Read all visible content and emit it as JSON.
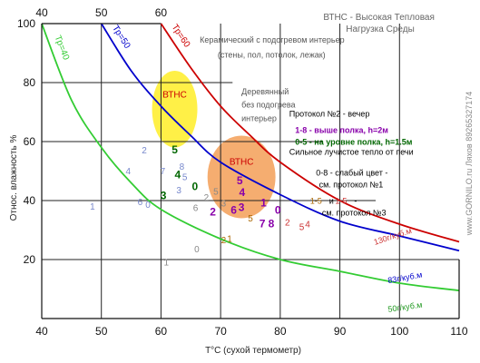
{
  "chart_data": {
    "type": "line",
    "title": "ВТНС - Высокая  Тепловая\nНагрузка Среды",
    "xlabel": "T°C (сухой термометр)",
    "ylabel": "Относ. влажность %",
    "xlim": [
      40,
      110
    ],
    "ylim": [
      0,
      100
    ],
    "x_ticks": [
      40,
      50,
      60,
      70,
      80,
      90,
      100,
      110
    ],
    "y_ticks": [
      20,
      40,
      60,
      80,
      100
    ],
    "top_ticks": [
      {
        "label": "40",
        "x": 40
      },
      {
        "label": "50",
        "x": 50
      },
      {
        "label": "60",
        "x": 60
      }
    ],
    "grid": true,
    "vertical_lines": [
      50,
      60,
      70,
      80,
      90,
      100
    ],
    "horizontal_lines": [
      {
        "y": 80,
        "to": 72
      },
      {
        "y": 60,
        "to": 87
      },
      {
        "y": 40,
        "to": 96
      },
      {
        "y": 20,
        "to": 110
      }
    ],
    "series": [
      {
        "name": "Тр=40",
        "color": "#33cc33",
        "points": [
          [
            40,
            100
          ],
          [
            45,
            74
          ],
          [
            50,
            58
          ],
          [
            55,
            46
          ],
          [
            60,
            37
          ],
          [
            70,
            27
          ],
          [
            80,
            20
          ],
          [
            90,
            16
          ],
          [
            100,
            12
          ],
          [
            110,
            9.5
          ]
        ]
      },
      {
        "name": "Тр=50",
        "color": "#0000cc",
        "points": [
          [
            50,
            100
          ],
          [
            55,
            84
          ],
          [
            60,
            72
          ],
          [
            65,
            62
          ],
          [
            70,
            53
          ],
          [
            80,
            42
          ],
          [
            90,
            33
          ],
          [
            100,
            28
          ],
          [
            110,
            23
          ]
        ]
      },
      {
        "name": "Тр=60",
        "color": "#cc0000",
        "points": [
          [
            60,
            100
          ],
          [
            65,
            85
          ],
          [
            70,
            72
          ],
          [
            75,
            62
          ],
          [
            80,
            53
          ],
          [
            90,
            40
          ],
          [
            100,
            32
          ],
          [
            110,
            26
          ]
        ]
      }
    ],
    "curve_labels": [
      {
        "text": "130г/куб.м",
        "color": "#cc3333",
        "x": 99,
        "y": 27,
        "rotate": -18
      },
      {
        "text": "83г/куб.м",
        "color": "#0000cc",
        "x": 101,
        "y": 13,
        "rotate": -10
      },
      {
        "text": "50г/куб.м",
        "color": "#229922",
        "x": 101,
        "y": 3,
        "rotate": -8
      }
    ],
    "zones": [
      {
        "label": "ВТНС",
        "fill": "#ffee33",
        "label_color": "#cc0000",
        "cx": 62.3,
        "cy": 71,
        "rx": 3.8,
        "ry": 13
      },
      {
        "label": "ВТНС",
        "fill": "#f4a460",
        "label_color": "#cc0000",
        "cx": 73.5,
        "cy": 48,
        "rx": 5.7,
        "ry": 14
      }
    ],
    "annotations": [
      {
        "text": "Керамический с подогревом интерьер",
        "x": 66.5,
        "y": 93.5,
        "color": "#555555"
      },
      {
        "text": "(стены, пол, потолок, лежак)",
        "x": 69.5,
        "y": 88.5,
        "color": "#555555"
      },
      {
        "text": "Деревянный",
        "x": 73.5,
        "y": 76,
        "color": "#555555"
      },
      {
        "text": "без подогрева",
        "x": 73.5,
        "y": 71.5,
        "color": "#555555"
      },
      {
        "text": "интерьер",
        "x": 73.5,
        "y": 67,
        "color": "#555555"
      },
      {
        "text": "Протокол №2 - вечер",
        "x": 81.5,
        "y": 68.5,
        "color": "#000000"
      },
      {
        "text": "1-8 - выше полка, h=2м",
        "x": 82.5,
        "y": 63,
        "color": "#8800aa",
        "bold": true
      },
      {
        "text": "0-5 - на уровне полка, h=1.5м",
        "x": 82.5,
        "y": 59,
        "color": "#006600",
        "bold": true
      },
      {
        "text": "Сильное лучистое тепло от печи",
        "x": 81.5,
        "y": 55.5,
        "color": "#000000"
      },
      {
        "text": "0-8 - слабый цвет -",
        "x": 86,
        "y": 48.5,
        "color": "#000000"
      },
      {
        "text": "см. протокол №1",
        "x": 86.5,
        "y": 44.5,
        "color": "#000000"
      },
      {
        "text": "1-5",
        "x": 85,
        "y": 39,
        "color": "#aa6600"
      },
      {
        "text": "и",
        "x": 88.2,
        "y": 39,
        "color": "#000000"
      },
      {
        "text": "1-5",
        "x": 89.2,
        "y": 39,
        "color": "#cc3333"
      },
      {
        "text": "-",
        "x": 92.4,
        "y": 39,
        "color": "#000000"
      },
      {
        "text": "см. протокол №3",
        "x": 87,
        "y": 35,
        "color": "#000000"
      }
    ],
    "markers": [
      {
        "t": "1",
        "x": 48.5,
        "y": 37,
        "c": "#7788cc"
      },
      {
        "t": "4",
        "x": 54.5,
        "y": 49,
        "c": "#7788cc"
      },
      {
        "t": "2",
        "x": 57.2,
        "y": 56,
        "c": "#7788cc"
      },
      {
        "t": "6",
        "x": 56.5,
        "y": 38.5,
        "c": "#7788cc"
      },
      {
        "t": "0",
        "x": 57.8,
        "y": 37.5,
        "c": "#7788cc"
      },
      {
        "t": "7",
        "x": 60.3,
        "y": 49,
        "c": "#7788cc"
      },
      {
        "t": "8",
        "x": 63.5,
        "y": 50.5,
        "c": "#7788cc"
      },
      {
        "t": "5",
        "x": 64,
        "y": 47,
        "c": "#7788cc"
      },
      {
        "t": "3",
        "x": 63,
        "y": 42.5,
        "c": "#7788cc"
      },
      {
        "t": "5",
        "x": 62.3,
        "y": 56,
        "c": "#006600",
        "bold": true
      },
      {
        "t": "4",
        "x": 62.8,
        "y": 47.5,
        "c": "#006600",
        "bold": true
      },
      {
        "t": "3",
        "x": 60.4,
        "y": 40.5,
        "c": "#006600",
        "bold": true
      },
      {
        "t": "0",
        "x": 65.7,
        "y": 43.5,
        "c": "#006600",
        "bold": true
      },
      {
        "t": "5",
        "x": 69.2,
        "y": 42,
        "c": "#888888"
      },
      {
        "t": "2",
        "x": 67.6,
        "y": 40,
        "c": "#888888"
      },
      {
        "t": "6",
        "x": 65.8,
        "y": 36.5,
        "c": "#888888"
      },
      {
        "t": "3",
        "x": 70.5,
        "y": 38,
        "c": "#888888"
      },
      {
        "t": "0",
        "x": 66,
        "y": 22.5,
        "c": "#888888"
      },
      {
        "t": "1",
        "x": 60.9,
        "y": 18,
        "c": "#888888"
      },
      {
        "t": "5",
        "x": 73.2,
        "y": 45.5,
        "c": "#8800aa",
        "bold": true
      },
      {
        "t": "4",
        "x": 73.6,
        "y": 41.5,
        "c": "#8800aa",
        "bold": true
      },
      {
        "t": "2",
        "x": 68.7,
        "y": 35,
        "c": "#8800aa",
        "bold": true
      },
      {
        "t": "6",
        "x": 72.2,
        "y": 35.5,
        "c": "#8800aa",
        "bold": true
      },
      {
        "t": "3",
        "x": 73.5,
        "y": 36.5,
        "c": "#8800aa",
        "bold": true
      },
      {
        "t": "1",
        "x": 77.2,
        "y": 38,
        "c": "#8800aa",
        "bold": true
      },
      {
        "t": "0",
        "x": 79.6,
        "y": 35.5,
        "c": "#8800aa",
        "bold": true
      },
      {
        "t": "7",
        "x": 77,
        "y": 31,
        "c": "#8800aa",
        "bold": true
      },
      {
        "t": "8",
        "x": 78.5,
        "y": 31,
        "c": "#8800aa",
        "bold": true
      },
      {
        "t": "5",
        "x": 75,
        "y": 33,
        "c": "#aa6600"
      },
      {
        "t": "2",
        "x": 70.5,
        "y": 25.5,
        "c": "#aa6600"
      },
      {
        "t": "1",
        "x": 71.5,
        "y": 26,
        "c": "#aa6600"
      },
      {
        "t": "2",
        "x": 81.2,
        "y": 31.5,
        "c": "#cc3333"
      },
      {
        "t": "5",
        "x": 83.6,
        "y": 30,
        "c": "#cc3333"
      },
      {
        "t": "4",
        "x": 84.6,
        "y": 31,
        "c": "#cc3333"
      }
    ]
  },
  "watermark": "www.GORNILO.ru Ляхов 89265327174"
}
